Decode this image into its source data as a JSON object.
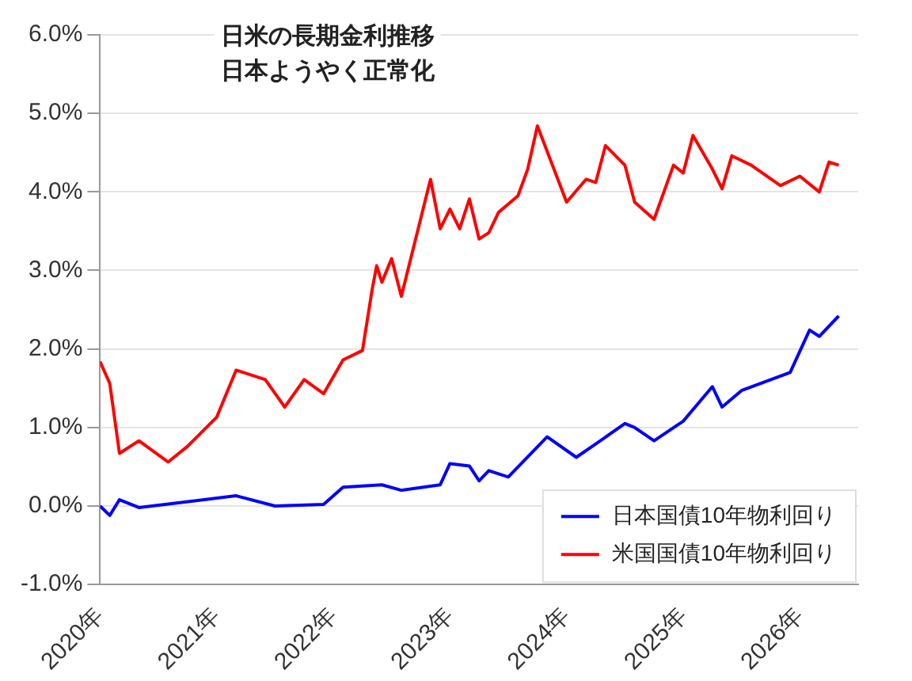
{
  "chart_data": {
    "type": "line",
    "title": "日米の長期金利推移",
    "subtitle": "日本ようやく正常化",
    "xlim": [
      "2020",
      "2026-07"
    ],
    "xticks": [
      {
        "value": "2020",
        "label": "2020年"
      },
      {
        "value": "2021",
        "label": "2021年"
      },
      {
        "value": "2022",
        "label": "2022年"
      },
      {
        "value": "2023",
        "label": "2023年"
      },
      {
        "value": "2024",
        "label": "2024年"
      },
      {
        "value": "2025",
        "label": "2025年"
      },
      {
        "value": "2026",
        "label": "2026年"
      }
    ],
    "ylim": [
      -1,
      6
    ],
    "yticks": [
      {
        "value": -1,
        "label": "-1.0%"
      },
      {
        "value": 0,
        "label": "0.0%"
      },
      {
        "value": 1,
        "label": "1.0%"
      },
      {
        "value": 2,
        "label": "2.0%"
      },
      {
        "value": 3,
        "label": "3.0%"
      },
      {
        "value": 4,
        "label": "4.0%"
      },
      {
        "value": 5,
        "label": "5.0%"
      },
      {
        "value": 6,
        "label": "6.0%"
      }
    ],
    "grid": "y",
    "legend": "bottom right",
    "marker": "none",
    "line_style": "solid",
    "series": [
      {
        "name": "日本国債10年物利回り",
        "color": "#0000ff",
        "x": [
          "2020-01",
          "2020-02",
          "2020-03",
          "2020-05",
          "2021-03",
          "2021-07",
          "2021-12",
          "2022-02",
          "2022-06",
          "2022-08",
          "2022-12",
          "2023-01",
          "2023-03",
          "2023-04",
          "2023-05",
          "2023-07",
          "2023-11",
          "2024-02",
          "2024-04",
          "2024-07",
          "2024-08",
          "2024-10",
          "2025-01",
          "2025-04",
          "2025-05",
          "2025-07",
          "2025-12",
          "2026-02",
          "2026-03",
          "2026-05"
        ],
        "values": [
          0.0,
          -0.12,
          0.08,
          -0.02,
          0.13,
          0.0,
          0.02,
          0.24,
          0.27,
          0.2,
          0.27,
          0.54,
          0.51,
          0.32,
          0.45,
          0.37,
          0.88,
          0.62,
          0.79,
          1.05,
          1.0,
          0.83,
          1.08,
          1.52,
          1.26,
          1.47,
          1.7,
          2.24,
          2.16,
          2.42
        ]
      },
      {
        "name": "米国国債10年物利回り",
        "color": "#ff0000",
        "x": [
          "2020-01",
          "2020-02",
          "2020-03",
          "2020-05",
          "2020-08",
          "2020-10",
          "2021-01",
          "2021-03",
          "2021-06",
          "2021-08",
          "2021-10",
          "2021-12",
          "2022-02",
          "2022-04",
          "2022-05",
          "2022-05-15",
          "2022-06",
          "2022-07",
          "2022-08",
          "2022-11",
          "2022-12",
          "2023-01",
          "2023-02",
          "2023-03",
          "2023-04",
          "2023-05",
          "2023-06",
          "2023-08",
          "2023-09",
          "2023-10",
          "2024-01",
          "2024-03",
          "2024-04",
          "2024-05",
          "2024-07",
          "2024-08",
          "2024-10",
          "2024-12",
          "2025-01",
          "2025-02",
          "2025-04",
          "2025-05",
          "2025-06",
          "2025-08",
          "2025-11",
          "2026-01",
          "2026-03",
          "2026-04",
          "2026-05"
        ],
        "values": [
          1.84,
          1.56,
          0.67,
          0.83,
          0.56,
          0.76,
          1.13,
          1.73,
          1.61,
          1.26,
          1.61,
          1.43,
          1.86,
          1.98,
          2.76,
          3.06,
          2.85,
          3.15,
          2.67,
          4.16,
          3.53,
          3.78,
          3.53,
          3.91,
          3.4,
          3.48,
          3.74,
          3.95,
          4.29,
          4.84,
          3.87,
          4.16,
          4.12,
          4.59,
          4.34,
          3.87,
          3.65,
          4.34,
          4.24,
          4.72,
          4.29,
          4.04,
          4.46,
          4.34,
          4.08,
          4.2,
          4.0,
          4.38,
          4.34
        ]
      }
    ]
  }
}
